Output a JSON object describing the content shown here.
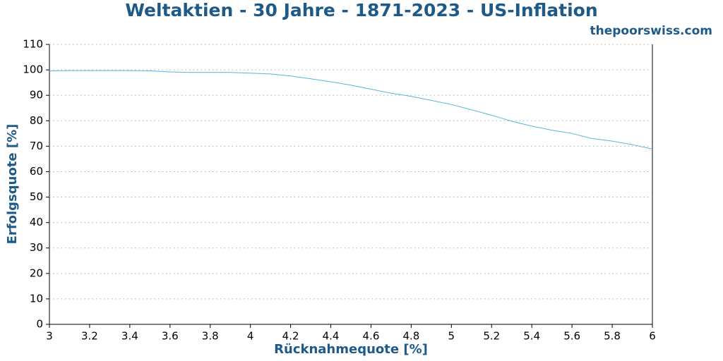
{
  "chart_data": {
    "type": "line",
    "title": "Weltaktien - 30 Jahre - 1871-2023 - US-Inflation",
    "subtitle": "thepoorswiss.com",
    "x_label": "Rücknahmequote [%]",
    "y_label": "Erfolgsquote [%]",
    "x": [
      3.0,
      3.1,
      3.2,
      3.3,
      3.4,
      3.5,
      3.6,
      3.7,
      3.8,
      3.9,
      4.0,
      4.1,
      4.2,
      4.3,
      4.4,
      4.5,
      4.6,
      4.7,
      4.8,
      4.9,
      5.0,
      5.1,
      5.2,
      5.3,
      5.4,
      5.5,
      5.6,
      5.7,
      5.8,
      5.9,
      6.0
    ],
    "series": [
      {
        "color": "#5ab4dc",
        "values": [
          99.6,
          99.7,
          99.7,
          99.7,
          99.7,
          99.6,
          99.2,
          99.0,
          99.0,
          99.0,
          98.7,
          98.4,
          97.6,
          96.5,
          95.3,
          94.0,
          92.4,
          90.8,
          89.6,
          88.0,
          86.4,
          84.3,
          82.2,
          79.8,
          77.9,
          76.3,
          75.0,
          73.0,
          72.0,
          70.6,
          68.9
        ]
      }
    ],
    "xlim": [
      3,
      6
    ],
    "xticks": [
      3,
      3.2,
      3.4,
      3.6,
      3.8,
      4,
      4.2,
      4.4,
      4.6,
      4.8,
      5,
      5.2,
      5.4,
      5.6,
      5.8,
      6
    ],
    "ylim": [
      0,
      110
    ],
    "yticks": [
      0,
      10,
      20,
      30,
      40,
      50,
      60,
      70,
      80,
      90,
      100,
      110
    ],
    "grid": true
  }
}
